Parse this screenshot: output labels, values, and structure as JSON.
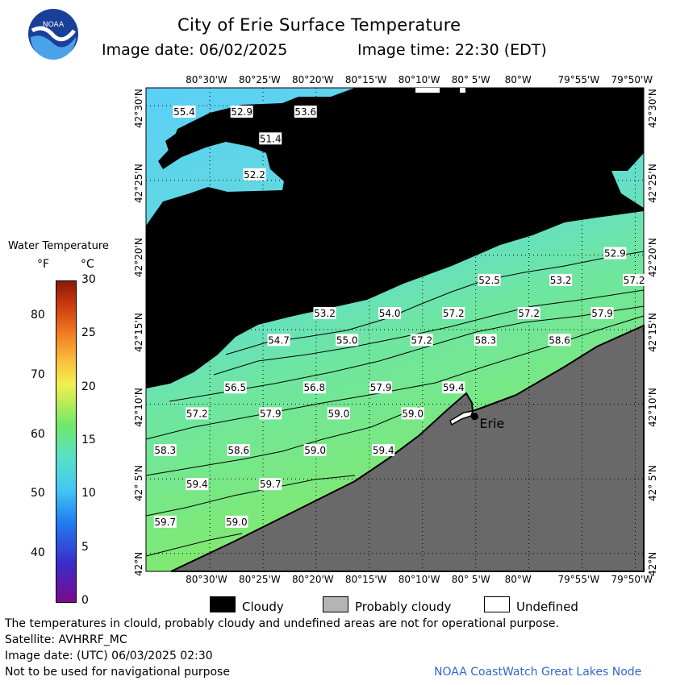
{
  "title": "City of Erie Surface Temperature",
  "image_date_label": "Image date: 06/02/2025",
  "image_time_label": "Image time: 22:30 (EDT)",
  "logo_text": "NOAA",
  "legend": {
    "title": "Water Temperature",
    "unit_f": "°F",
    "unit_c": "°C",
    "f_ticks": [
      "80",
      "70",
      "60",
      "50",
      "40"
    ],
    "c_ticks": [
      "30",
      "25",
      "20",
      "15",
      "10",
      "5",
      "0"
    ]
  },
  "axes": {
    "lon_labels": [
      "80°30'W",
      "80°25'W",
      "80°20'W",
      "80°15'W",
      "80°10'W",
      "80° 5'W",
      "80°W",
      "79°55'W",
      "79°50'W"
    ],
    "lat_labels": [
      "42°30'N",
      "42°25'N",
      "42°20'N",
      "42°15'N",
      "42°10'N",
      "42° 5'N",
      "42°N"
    ]
  },
  "temperature_labels": [
    {
      "t": "55.4",
      "lon": -80.54,
      "lat": 42.493
    },
    {
      "t": "52.9",
      "lon": -80.45,
      "lat": 42.493
    },
    {
      "t": "53.6",
      "lon": -80.35,
      "lat": 42.493
    },
    {
      "t": "51.4",
      "lon": -80.405,
      "lat": 42.463
    },
    {
      "t": "52.2",
      "lon": -80.43,
      "lat": 42.423
    },
    {
      "t": "52.9",
      "lon": -79.865,
      "lat": 42.335
    },
    {
      "t": "52.5",
      "lon": -80.062,
      "lat": 42.305
    },
    {
      "t": "53.2",
      "lon": -79.95,
      "lat": 42.305
    },
    {
      "t": "57.2",
      "lon": -79.835,
      "lat": 42.305
    },
    {
      "t": "53.2",
      "lon": -80.32,
      "lat": 42.268
    },
    {
      "t": "54.0",
      "lon": -80.218,
      "lat": 42.268
    },
    {
      "t": "57.2",
      "lon": -80.118,
      "lat": 42.268
    },
    {
      "t": "57.2",
      "lon": -80.0,
      "lat": 42.268
    },
    {
      "t": "57.9",
      "lon": -79.885,
      "lat": 42.268
    },
    {
      "t": "54.7",
      "lon": -80.392,
      "lat": 42.238
    },
    {
      "t": "55.0",
      "lon": -80.285,
      "lat": 42.238
    },
    {
      "t": "57.2",
      "lon": -80.168,
      "lat": 42.238
    },
    {
      "t": "58.3",
      "lon": -80.068,
      "lat": 42.238
    },
    {
      "t": "58.6",
      "lon": -79.952,
      "lat": 42.238
    },
    {
      "t": "56.5",
      "lon": -80.46,
      "lat": 42.185
    },
    {
      "t": "56.8",
      "lon": -80.336,
      "lat": 42.185
    },
    {
      "t": "57.9",
      "lon": -80.232,
      "lat": 42.185
    },
    {
      "t": "59.4",
      "lon": -80.118,
      "lat": 42.185
    },
    {
      "t": "57.2",
      "lon": -80.52,
      "lat": 42.156
    },
    {
      "t": "57.9",
      "lon": -80.405,
      "lat": 42.156
    },
    {
      "t": "59.0",
      "lon": -80.298,
      "lat": 42.156
    },
    {
      "t": "59.0",
      "lon": -80.182,
      "lat": 42.156
    },
    {
      "t": "58.3",
      "lon": -80.57,
      "lat": 42.115
    },
    {
      "t": "58.6",
      "lon": -80.455,
      "lat": 42.115
    },
    {
      "t": "59.0",
      "lon": -80.335,
      "lat": 42.115
    },
    {
      "t": "59.4",
      "lon": -80.228,
      "lat": 42.115
    },
    {
      "t": "59.4",
      "lon": -80.52,
      "lat": 42.077
    },
    {
      "t": "59.7",
      "lon": -80.405,
      "lat": 42.077
    },
    {
      "t": "59.7",
      "lon": -80.57,
      "lat": 42.035
    },
    {
      "t": "59.0",
      "lon": -80.458,
      "lat": 42.035
    }
  ],
  "city": {
    "name": "Erie",
    "lon": -80.085,
    "lat": 42.153
  },
  "key": {
    "cloudy": "Cloudy",
    "probably_cloudy": "Probably cloudy",
    "undefined": "Undefined"
  },
  "colors": {
    "cloudy": "#000000",
    "probably_cloudy": "#b4b4b4",
    "undefined": "#ffffff",
    "land": "#696969",
    "water_cool": "#5fd0f5",
    "water_mid": "#66e2b0",
    "water_warm": "#7ae86a"
  },
  "footer": {
    "disclaimer": "The temperatures in clould, probably cloudy and undefined areas are not for operational purpose.",
    "satellite": "Satellite: AVHRRF_MC",
    "image_date_utc": "Image date: (UTC) 06/03/2025  02:30",
    "nav": "Not to be used for navigational purpose",
    "credit": "NOAA CoastWatch Great Lakes Node"
  }
}
